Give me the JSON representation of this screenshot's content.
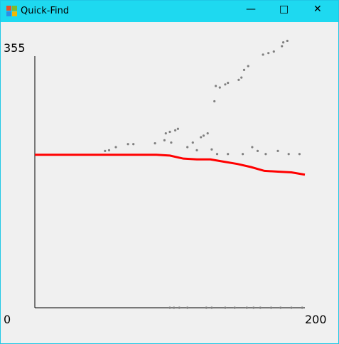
{
  "window": {
    "title": "Quick-Find"
  },
  "chart_data": {
    "type": "scatter",
    "xlim": [
      0,
      200
    ],
    "ylim": [
      0,
      355
    ],
    "xticks": [
      200
    ],
    "yticks": [
      0,
      355
    ],
    "series": [
      {
        "color": "#808080",
        "x": [
          133,
          134,
          137,
          141,
          143,
          151,
          153,
          155,
          158,
          169,
          173,
          177,
          183,
          184,
          187,
          52,
          55,
          60,
          69,
          73,
          89,
          96,
          97,
          100,
          104,
          106,
          101,
          113,
          117,
          120,
          123,
          125,
          128,
          131,
          135,
          143,
          154,
          161,
          165,
          171,
          180,
          188,
          196,
          100,
          103,
          107,
          113,
          127,
          131,
          141,
          148,
          157,
          162,
          167,
          175,
          182,
          190,
          198
        ],
        "values": [
          270,
          290,
          288,
          292,
          294,
          298,
          301,
          311,
          316,
          331,
          333,
          335,
          342,
          347,
          349,
          205,
          206,
          210,
          214,
          214,
          215,
          219,
          228,
          230,
          232,
          234,
          216,
          210,
          216,
          206,
          223,
          225,
          228,
          207,
          201,
          201,
          201,
          210,
          205,
          201,
          205,
          201,
          201,
          0,
          0,
          0,
          0,
          0,
          0,
          0,
          0,
          0,
          0,
          0,
          0,
          0,
          0,
          0
        ]
      },
      {
        "type": "line",
        "color": "#ff0000",
        "x": [
          0,
          10,
          20,
          30,
          40,
          50,
          60,
          70,
          80,
          90,
          100,
          110,
          120,
          130,
          140,
          150,
          160,
          170,
          180,
          190,
          200
        ],
        "values": [
          200,
          200,
          200,
          200,
          200,
          200,
          200,
          200,
          200,
          200,
          199,
          195,
          194,
          194,
          191,
          188,
          184,
          179,
          178,
          177,
          174
        ]
      }
    ]
  }
}
